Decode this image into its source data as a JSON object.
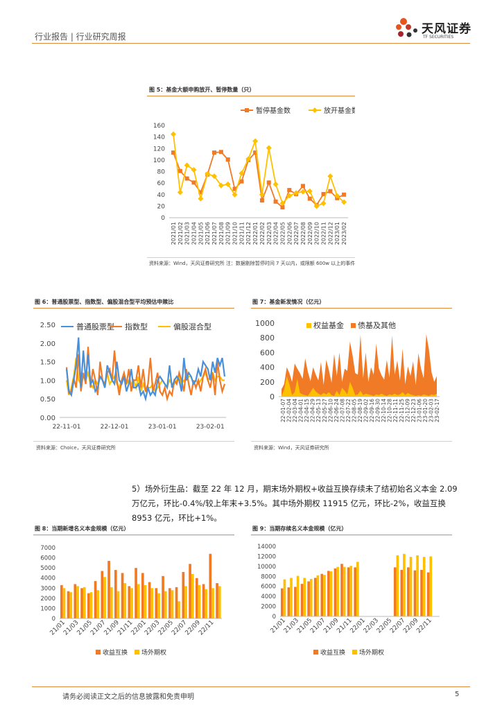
{
  "header": {
    "left": "行业报告 | 行业研究周报",
    "brand_name": "天风证券",
    "brand_sub": "TF SECURITIES"
  },
  "fig5": {
    "title": "图 5：基金大额申购放开、暂停数量（只）",
    "source": "资料来源：Wind，天风证券研究所     注：数据剔除暂停时间 7 天以内，或限额 600w 以上的事件"
  },
  "fig6": {
    "title": "图 6：普通股票型、指数型、偏股混合型平均预估申赎比",
    "source": "资料来源：Choice，天风证券研究所"
  },
  "fig7": {
    "title": "图 7：基金新发情况（亿元）",
    "source": "资料来源：Wind，天风证券研究所"
  },
  "paragraph": "5）场外衍生品：截至 22 年 12 月，期末场外期权+收益互换存续未了结初始名义本金 2.09 万亿元，环比-0.4%/较上年末+3.5%。其中场外期权 11915 亿元，环比-2%，收益互换 8953 亿元，环比+1%。",
  "fig8": {
    "title": "图 8：当期新增名义本金规模（亿元）"
  },
  "fig9": {
    "title": "图 9：当期存续名义本金规模（亿元）"
  },
  "footer": {
    "disclaimer": "请务必阅读正文之后的信息披露和免责申明",
    "page": "5"
  },
  "colors": {
    "orange": "#f07a26",
    "gold": "#ffc000",
    "blue": "#4a90d9",
    "accent": "#e08a3c"
  },
  "chart_data": [
    {
      "id": "fig5",
      "type": "line",
      "categories": [
        "2021/01",
        "2021/02",
        "2021/03",
        "2021/04",
        "2021/05",
        "2021/06",
        "2021/07",
        "2021/08",
        "2021/09",
        "2021/10",
        "2021/11",
        "2021/12",
        "2022/01",
        "2022/02",
        "2022/03",
        "2022/04",
        "2022/05",
        "2022/06",
        "2022/07",
        "2022/08",
        "2022/09",
        "2022/10",
        "2022/11",
        "2022/12",
        "2023/01",
        "2023/02"
      ],
      "series": [
        {
          "name": "暂停基金数",
          "values": [
            113,
            81,
            68,
            61,
            44,
            75,
            113,
            114,
            101,
            50,
            63,
            100,
            113,
            30,
            61,
            28,
            18,
            48,
            41,
            55,
            33,
            22,
            41,
            46,
            34,
            40
          ]
        },
        {
          "name": "放开基金数",
          "values": [
            145,
            44,
            91,
            83,
            33,
            76,
            72,
            56,
            58,
            40,
            77,
            102,
            133,
            40,
            121,
            58,
            25,
            38,
            43,
            45,
            46,
            20,
            25,
            72,
            38,
            27
          ]
        }
      ],
      "ylim": [
        0,
        160
      ],
      "yticks": [
        "0",
        "20",
        "40",
        "60",
        "80",
        "100",
        "120",
        "140",
        "160"
      ],
      "legend": "top"
    },
    {
      "id": "fig6",
      "type": "line",
      "series": [
        {
          "name": "普通股票型",
          "values": [
            1.3,
            0.7,
            0.6,
            1.0,
            1.4,
            2.15,
            0.8,
            1.8,
            1.0,
            1.7,
            0.9,
            1.0,
            0.7,
            0.8,
            1.1,
            1.0,
            0.8,
            1.4,
            1.2,
            1.0,
            0.9,
            1.5,
            1.0,
            0.9,
            1.1,
            0.7,
            0.9,
            1.3,
            0.8,
            0.8,
            0.9,
            0.6,
            0.7,
            0.5,
            0.8,
            0.6,
            0.7,
            0.6,
            1.0,
            1.1,
            1.0,
            0.9,
            0.8,
            1.4,
            0.8,
            1.0,
            1.1,
            1.0,
            0.7,
            1.6,
            1.0,
            1.2,
            1.1,
            0.9,
            1.0,
            1.3,
            1.1,
            1.5,
            1.4,
            1.3,
            1.0,
            1.5,
            1.2,
            1.6,
            1.4,
            1.6,
            1.1
          ]
        },
        {
          "name": "指数型",
          "values": [
            1.35,
            0.65,
            0.7,
            1.05,
            0.8,
            1.7,
            0.7,
            1.2,
            0.9,
            1.9,
            0.8,
            1.3,
            1.0,
            0.6,
            1.5,
            1.0,
            0.9,
            1.2,
            1.3,
            1.0,
            1.8,
            1.0,
            0.6,
            1.0,
            1.2,
            0.9,
            1.3,
            0.7,
            1.0,
            1.0,
            1.4,
            0.8,
            1.3,
            0.7,
            0.9,
            1.6,
            0.7,
            0.9,
            1.2,
            0.7,
            0.6,
            0.8,
            0.5,
            0.7,
            0.6,
            1.0,
            0.9,
            1.2,
            1.0,
            0.7,
            1.3,
            0.9,
            0.6,
            1.0,
            0.8,
            1.0,
            0.7,
            1.1,
            1.3,
            1.0,
            0.8,
            1.2,
            0.6,
            1.5,
            1.0,
            0.7,
            0.9
          ]
        },
        {
          "name": "偏股混合型",
          "values": [
            1.0,
            0.6,
            0.8,
            1.1,
            1.6,
            1.0,
            0.9,
            1.1,
            1.0,
            1.2,
            0.9,
            0.8,
            1.0,
            0.9,
            1.1,
            1.0,
            0.8,
            1.2,
            0.9,
            1.0,
            1.1,
            0.9,
            0.8,
            1.0,
            1.1,
            0.9,
            1.0,
            0.9,
            1.0,
            0.8,
            1.1,
            0.7,
            0.9,
            0.7,
            0.8,
            0.8,
            0.9,
            0.7,
            0.8,
            0.9,
            1.0,
            0.9,
            0.8,
            1.0,
            0.9,
            0.9,
            1.0,
            1.1,
            0.9,
            1.0,
            1.0,
            1.1,
            1.1,
            0.9,
            1.0,
            0.9,
            1.0,
            1.1,
            1.2,
            1.0,
            1.1,
            1.2,
            1.0,
            1.1,
            1.1,
            1.0,
            1.0
          ]
        }
      ],
      "xticks": [
        "22-11-01",
        "22-12-01",
        "23-01-01",
        "23-02-01"
      ],
      "ylim": [
        0,
        2.5
      ],
      "yticks": [
        "0.00",
        "0.50",
        "1.00",
        "1.50",
        "2.00",
        "2.50"
      ],
      "legend": "top"
    },
    {
      "id": "fig7",
      "type": "area",
      "series": [
        {
          "name": "权益基金",
          "values": [
            10,
            90,
            280,
            170,
            20,
            60,
            240,
            50,
            30,
            20,
            10,
            60,
            120,
            70,
            40,
            20,
            50,
            30,
            60,
            20,
            10,
            80,
            20,
            120,
            80,
            30,
            200,
            120,
            20,
            30,
            80,
            20,
            40,
            30,
            20,
            10,
            30,
            20,
            40,
            20,
            10,
            30,
            20,
            40,
            20,
            30,
            60,
            20,
            50,
            30,
            20,
            10,
            20,
            10,
            30,
            20,
            10,
            30,
            20,
            40
          ]
        },
        {
          "name": "债基及其他",
          "values": [
            100,
            170,
            400,
            320,
            200,
            450,
            380,
            320,
            240,
            520,
            340,
            210,
            400,
            300,
            220,
            470,
            160,
            500,
            360,
            190,
            580,
            280,
            600,
            200,
            380,
            350,
            750,
            560,
            320,
            300,
            840,
            250,
            600,
            200,
            400,
            300,
            720,
            380,
            290,
            230,
            500,
            260,
            830,
            300,
            490,
            220,
            650,
            170,
            410,
            280,
            480,
            160,
            590,
            380,
            250,
            850,
            640,
            330,
            200,
            280
          ]
        }
      ],
      "xticks": [
        "22-01-07",
        "22-02-04",
        "22-03-04",
        "22-04-01",
        "22-04-15",
        "22-04-29",
        "22-05-13",
        "22-05-27",
        "22-06-10",
        "22-06-24",
        "22-07-08",
        "22-07-22",
        "22-08-05",
        "22-08-19",
        "22-09-02",
        "22-09-16",
        "22-09-30",
        "22-10-14",
        "22-10-28",
        "22-11-11",
        "22-11-25",
        "22-12-09",
        "22-12-23",
        "23-01-06",
        "23-01-20",
        "23-02-03",
        "23-02-17"
      ],
      "ylim": [
        0,
        1000
      ],
      "yticks": [
        "0",
        "200",
        "400",
        "600",
        "800",
        "1000"
      ],
      "legend": "top"
    },
    {
      "id": "fig8",
      "type": "bar",
      "categories": [
        "21/01",
        "21/02",
        "21/03",
        "21/04",
        "21/05",
        "21/06",
        "21/07",
        "21/08",
        "21/09",
        "21/10",
        "21/11",
        "21/12",
        "22/01",
        "22/02",
        "22/03",
        "22/04",
        "22/05",
        "22/06",
        "22/07",
        "22/08",
        "22/09",
        "22/10",
        "22/11",
        "22/12"
      ],
      "xticks": [
        "21/01",
        "21/03",
        "21/05",
        "21/07",
        "21/09",
        "21/11",
        "22/01",
        "22/03",
        "22/05",
        "22/07",
        "22/09",
        "22/11"
      ],
      "series": [
        {
          "name": "收益互换",
          "values": [
            3300,
            2700,
            3400,
            3000,
            2500,
            3700,
            4700,
            5700,
            4800,
            4500,
            3200,
            5000,
            4500,
            3600,
            3000,
            4200,
            3000,
            3100,
            4600,
            5400,
            4000,
            3400,
            6400,
            3500
          ]
        },
        {
          "name": "场外期权",
          "values": [
            3000,
            2600,
            3200,
            3100,
            2600,
            2800,
            4100,
            3100,
            2700,
            3500,
            3000,
            3400,
            3300,
            3000,
            2500,
            2700,
            2800,
            1700,
            3200,
            4400,
            3300,
            2900,
            3000,
            3200
          ]
        }
      ],
      "ylim": [
        0,
        7000
      ],
      "yticks": [
        "0",
        "1000",
        "2000",
        "3000",
        "4000",
        "5000",
        "6000",
        "7000"
      ],
      "legend": "bottom"
    },
    {
      "id": "fig9",
      "type": "bar",
      "categories": [
        "21/01",
        "21/02",
        "21/03",
        "21/04",
        "21/05",
        "21/06",
        "21/07",
        "21/08",
        "21/09",
        "21/10",
        "21/11",
        "21/12",
        "22/01",
        "22/02",
        "22/03",
        "22/04",
        "22/05",
        "22/06",
        "22/07",
        "22/08",
        "22/09",
        "22/10",
        "22/11",
        "22/12"
      ],
      "xticks": [
        "21/01",
        "21/03",
        "21/05",
        "21/07",
        "21/09",
        "21/11",
        "22/01",
        "22/03",
        "22/05",
        "22/07",
        "22/09",
        "22/11"
      ],
      "series": [
        {
          "name": "收益互换",
          "values": [
            5600,
            5800,
            5900,
            6500,
            7000,
            7700,
            8500,
            9100,
            9600,
            10500,
            9800,
            9800,
            null,
            null,
            null,
            null,
            null,
            9800,
            9300,
            9800,
            9200,
            9300,
            8800,
            null
          ]
        },
        {
          "name": "场外期权",
          "values": [
            7400,
            7700,
            8100,
            7700,
            7500,
            8200,
            8300,
            9000,
            9900,
            9900,
            10100,
            10900,
            null,
            null,
            null,
            null,
            null,
            12200,
            12500,
            11900,
            12200,
            11900,
            12000,
            null
          ]
        }
      ],
      "ylim": [
        0,
        14000
      ],
      "yticks": [
        "0",
        "2000",
        "4000",
        "6000",
        "8000",
        "10000",
        "12000",
        "14000"
      ],
      "legend": "bottom"
    }
  ]
}
